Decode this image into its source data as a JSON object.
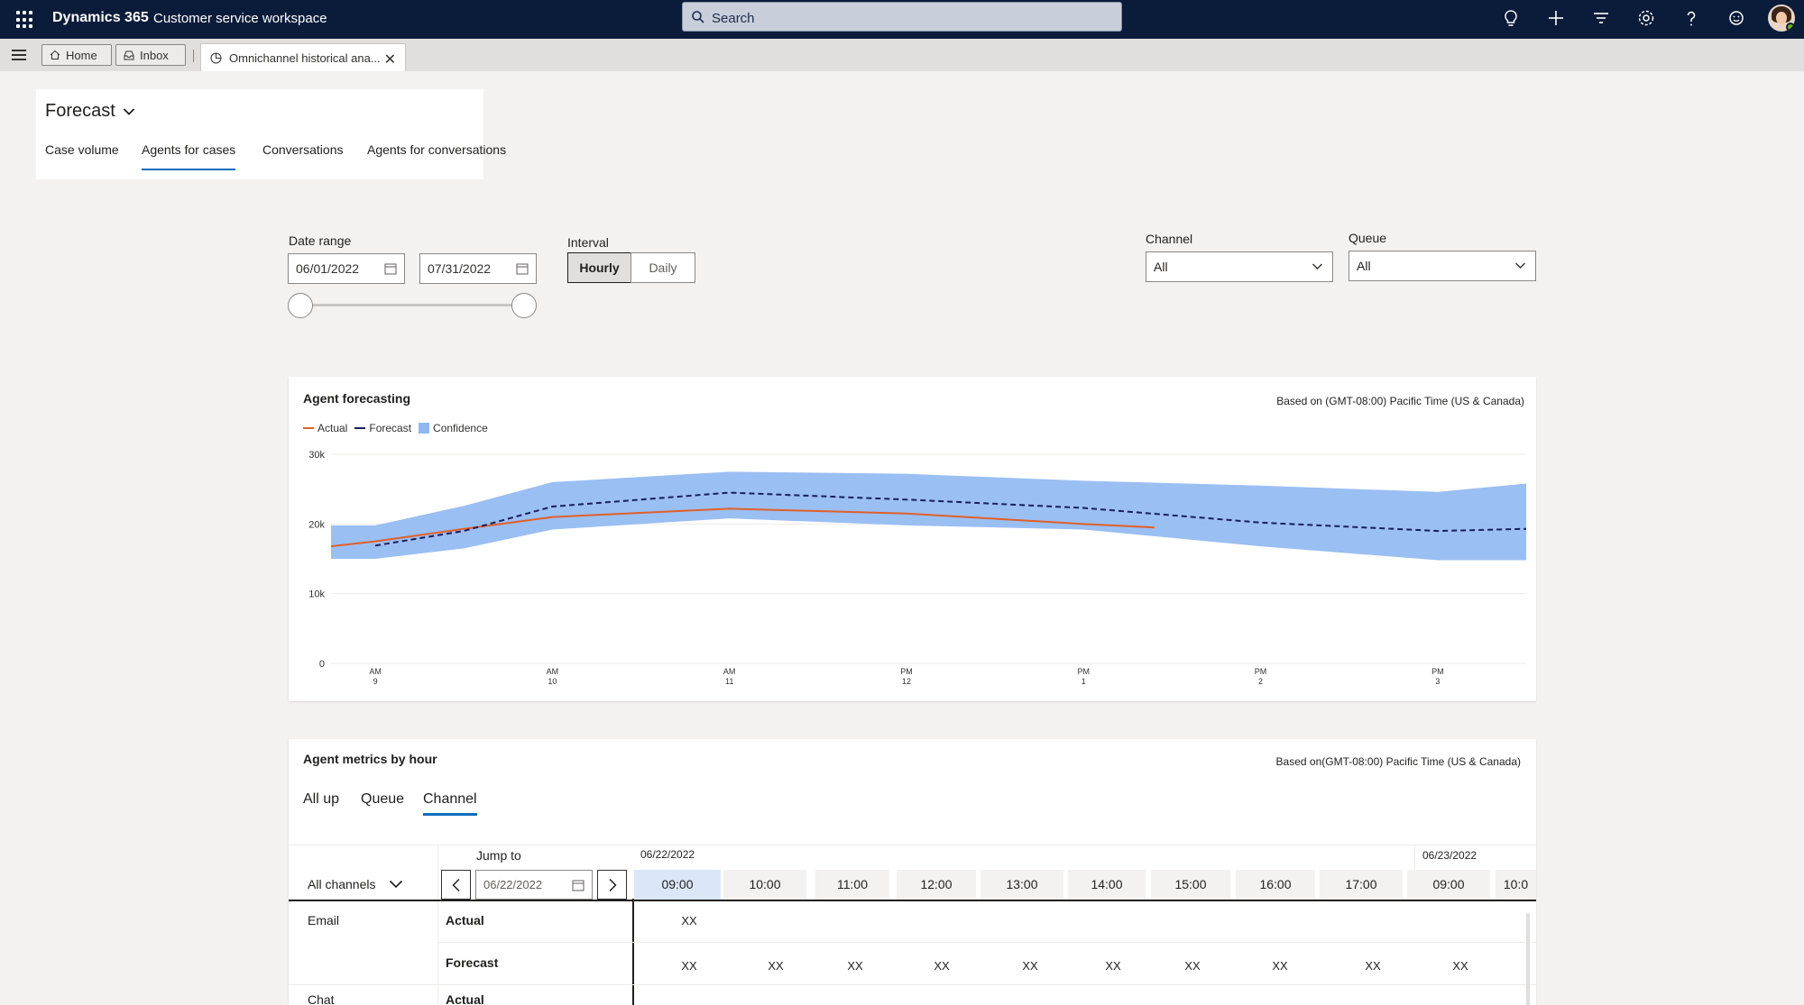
{
  "topbar": {
    "brand": "Dynamics 365",
    "app": "Customer service workspace",
    "search_placeholder": "Search"
  },
  "tabbar": {
    "home": "Home",
    "inbox": "Inbox",
    "active_tab": "Omnichannel historical ana..."
  },
  "page": {
    "title": "Forecast",
    "subtabs": [
      "Case volume",
      "Agents for cases",
      "Conversations",
      "Agents for conversations"
    ],
    "active_subtab": "Agents for cases"
  },
  "filters": {
    "date_range_label": "Date range",
    "start_date": "06/01/2022",
    "end_date": "07/31/2022",
    "interval_label": "Interval",
    "interval_options": [
      "Hourly",
      "Daily"
    ],
    "interval_selected": "Hourly",
    "channel_label": "Channel",
    "channel_value": "All",
    "queue_label": "Queue",
    "queue_value": "All"
  },
  "forecast_card": {
    "title": "Agent forecasting",
    "timezone": "Based on (GMT-08:00) Pacific Time (US & Canada)",
    "legend": [
      "Actual",
      "Forecast",
      "Confidence"
    ]
  },
  "chart_data": {
    "type": "line",
    "title": "Agent forecasting",
    "x": [
      "9 AM",
      "9:30 AM",
      "10 AM",
      "11 AM",
      "12 PM",
      "1 PM",
      "2 PM",
      "3 PM",
      "3:30 PM"
    ],
    "x_ticks": [
      {
        "top": "AM",
        "bottom": "9"
      },
      {
        "top": "AM",
        "bottom": "10"
      },
      {
        "top": "AM",
        "bottom": "11"
      },
      {
        "top": "PM",
        "bottom": "12"
      },
      {
        "top": "PM",
        "bottom": "1"
      },
      {
        "top": "PM",
        "bottom": "2"
      },
      {
        "top": "PM",
        "bottom": "3"
      }
    ],
    "y_ticks": [
      "0",
      "10k",
      "20k",
      "30k"
    ],
    "ylim": [
      0,
      30000
    ],
    "xlim": [
      8.75,
      15.5
    ],
    "series": [
      {
        "name": "Actual",
        "x": [
          8.75,
          9,
          9.5,
          10,
          11,
          12,
          13,
          13.4
        ],
        "values": [
          16800,
          17500,
          19300,
          21000,
          22200,
          21500,
          20000,
          19500
        ],
        "color": "#e0602a"
      },
      {
        "name": "Forecast",
        "x": [
          9,
          9.5,
          10,
          11,
          12,
          13,
          14,
          15,
          15.5
        ],
        "values": [
          16900,
          19000,
          22500,
          24500,
          23500,
          22300,
          20200,
          19000,
          19300
        ],
        "color": "#1a1f5c"
      },
      {
        "name": "Confidence",
        "x": [
          8.75,
          9,
          9.5,
          10,
          11,
          12,
          13,
          14,
          15,
          15.5
        ],
        "low": [
          15000,
          15000,
          16500,
          19200,
          20800,
          19800,
          19200,
          16800,
          14800,
          14800
        ],
        "high": [
          19800,
          19800,
          22600,
          26000,
          27500,
          27200,
          26200,
          25500,
          24600,
          25800
        ],
        "color": "#8fb8f2"
      }
    ]
  },
  "metrics_card": {
    "title": "Agent metrics by hour",
    "timezone": "Based on(GMT-08:00) Pacific Time (US & Canada)",
    "tabs": [
      "All up",
      "Queue",
      "Channel"
    ],
    "active_tab": "Channel",
    "channel_filter": "All channels",
    "jump_to_label": "Jump to",
    "jump_to_date": "06/22/2022",
    "date_headers": [
      "06/22/2022",
      "06/23/2022"
    ],
    "time_headers": [
      "09:00",
      "10:00",
      "11:00",
      "12:00",
      "13:00",
      "14:00",
      "15:00",
      "16:00",
      "17:00",
      "09:00",
      "10:0"
    ],
    "rows": [
      {
        "channel": "Email",
        "metric": "Actual",
        "values": [
          "XX"
        ]
      },
      {
        "channel": "",
        "metric": "Forecast",
        "values": [
          "XX",
          "XX",
          "XX",
          "XX",
          "XX",
          "XX",
          "XX",
          "XX",
          "XX",
          "XX"
        ]
      },
      {
        "channel": "Chat",
        "metric": "Actual",
        "values": []
      }
    ]
  }
}
